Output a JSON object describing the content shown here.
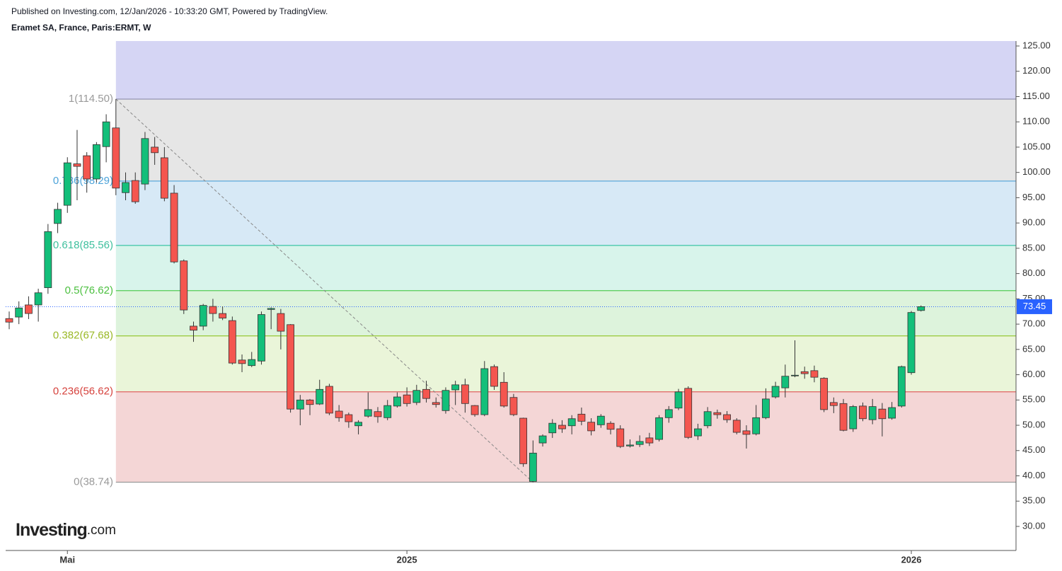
{
  "header": {
    "published": "Published on Investing.com, 12/Jan/2026 - 10:33:20 GMT, Powered by TradingView."
  },
  "logo": {
    "brand": "Investing",
    "suffix": ".com"
  },
  "chart_data": {
    "type": "candlestick",
    "title": "Eramet SA, France, Paris:ERMT, W",
    "categories": [
      null,
      null,
      null,
      null,
      null,
      null,
      "Mai",
      null,
      null,
      null,
      null,
      null,
      null,
      null,
      null,
      null,
      null,
      null,
      null,
      null,
      null,
      null,
      null,
      null,
      null,
      null,
      null,
      null,
      null,
      null,
      null,
      null,
      null,
      null,
      null,
      null,
      null,
      null,
      null,
      null,
      null,
      "2025",
      null,
      null,
      null,
      null,
      null,
      null,
      null,
      null,
      null,
      null,
      null,
      null,
      null,
      null,
      null,
      null,
      null,
      null,
      null,
      null,
      null,
      null,
      null,
      null,
      null,
      null,
      null,
      null,
      null,
      null,
      null,
      null,
      null,
      null,
      null,
      null,
      null,
      null,
      null,
      null,
      null,
      null,
      null,
      null,
      null,
      null,
      null,
      null,
      null,
      null,
      null,
      "2026",
      null
    ],
    "open": [
      71.1,
      71.4,
      73.8,
      73.8,
      77.2,
      89.9,
      93.5,
      101.7,
      103.3,
      98.7,
      105.1,
      108.8,
      96.0,
      98.4,
      97.7,
      105.0,
      102.9,
      95.9,
      82.5,
      69.6,
      69.6,
      73.5,
      72.1,
      70.7,
      62.9,
      61.8,
      62.7,
      72.9,
      72.1,
      69.9,
      53.2,
      55.0,
      54.2,
      57.7,
      52.8,
      52.1,
      49.9,
      51.8,
      52.7,
      51.5,
      53.8,
      56.0,
      54.5,
      57.1,
      54.5,
      52.9,
      57.0,
      58.0,
      53.9,
      52.1,
      61.6,
      58.5,
      55.5,
      51.4,
      38.9,
      46.5,
      48.5,
      50.0,
      49.9,
      52.2,
      50.6,
      50.1,
      50.4,
      49.3,
      45.9,
      46.2,
      47.5,
      47.2,
      51.5,
      53.4,
      57.3,
      47.9,
      49.9,
      52.5,
      52.1,
      51.0,
      48.9,
      48.3,
      51.5,
      55.6,
      57.4,
      59.8,
      60.6,
      60.8,
      59.3,
      54.5,
      54.3,
      49.3,
      53.8,
      51.1,
      53.2,
      51.4,
      53.8,
      60.4,
      72.7
    ],
    "high": [
      72.5,
      74.5,
      75.5,
      77.0,
      89.8,
      94.0,
      103.0,
      108.4,
      104.0,
      106.0,
      111.5,
      114.5,
      100.0,
      100.0,
      108.0,
      107.0,
      105.0,
      97.5,
      82.8,
      70.5,
      74.0,
      75.0,
      73.5,
      71.5,
      64.0,
      64.5,
      72.5,
      73.3,
      73.0,
      70.0,
      56.0,
      55.2,
      59.0,
      58.2,
      54.0,
      52.5,
      51.0,
      56.5,
      53.6,
      55.0,
      56.5,
      57.5,
      58.0,
      58.8,
      55.5,
      57.5,
      58.8,
      59.2,
      54.0,
      62.7,
      62.0,
      60.5,
      56.2,
      51.5,
      47.0,
      48.2,
      51.2,
      51.0,
      52.0,
      53.5,
      51.4,
      52.2,
      50.8,
      50.0,
      47.2,
      48.0,
      48.5,
      52.0,
      53.8,
      57.2,
      57.7,
      50.3,
      53.6,
      53.1,
      52.8,
      51.4,
      50.0,
      54.0,
      57.3,
      58.6,
      62.0,
      66.8,
      61.6,
      61.8,
      59.5,
      55.5,
      55.2,
      54.0,
      54.5,
      55.2,
      54.4,
      54.6,
      61.8,
      72.6,
      73.7
    ],
    "low": [
      69.0,
      70.0,
      71.0,
      70.5,
      76.0,
      88.0,
      92.0,
      94.5,
      96.0,
      98.0,
      102.0,
      95.5,
      94.5,
      93.8,
      96.5,
      101.5,
      94.3,
      82.0,
      72.0,
      66.5,
      68.8,
      70.5,
      70.8,
      62.0,
      60.5,
      61.5,
      62.0,
      69.0,
      65.0,
      52.5,
      50.0,
      52.0,
      54.0,
      52.0,
      50.7,
      49.5,
      48.2,
      51.5,
      50.5,
      51.0,
      53.5,
      53.7,
      54.0,
      54.5,
      53.5,
      52.3,
      54.0,
      52.5,
      51.7,
      51.8,
      57.0,
      53.5,
      51.8,
      41.8,
      38.74,
      45.8,
      47.5,
      48.5,
      48.2,
      50.0,
      48.0,
      49.5,
      48.2,
      45.5,
      45.6,
      45.7,
      45.9,
      46.8,
      50.5,
      53.0,
      47.3,
      47.1,
      49.4,
      51.3,
      50.5,
      48.2,
      45.4,
      48.0,
      51.2,
      55.3,
      55.5,
      59.5,
      59.2,
      58.5,
      52.6,
      52.4,
      48.8,
      48.7,
      50.8,
      50.2,
      47.8,
      51.1,
      53.5,
      60.0,
      72.5
    ],
    "close": [
      70.4,
      73.2,
      72.1,
      76.2,
      88.3,
      92.7,
      101.9,
      101.2,
      98.7,
      105.5,
      110.0,
      96.9,
      98.0,
      94.2,
      106.7,
      103.9,
      94.9,
      82.3,
      72.8,
      68.8,
      73.7,
      72.1,
      71.2,
      62.3,
      62.2,
      63.0,
      71.9,
      73.1,
      68.6,
      53.2,
      55.0,
      54.1,
      57.1,
      52.4,
      51.5,
      50.7,
      50.6,
      53.1,
      51.7,
      53.9,
      55.6,
      54.3,
      56.9,
      55.3,
      54.1,
      56.9,
      58.0,
      54.3,
      52.1,
      61.2,
      57.7,
      53.8,
      52.1,
      42.4,
      44.5,
      47.9,
      50.4,
      49.3,
      51.3,
      50.8,
      48.9,
      51.8,
      49.2,
      45.8,
      46.1,
      46.8,
      46.5,
      51.5,
      53.1,
      56.6,
      47.6,
      49.3,
      52.7,
      52.1,
      51.1,
      48.6,
      48.2,
      51.5,
      55.2,
      57.7,
      59.7,
      59.9,
      60.2,
      59.5,
      53.1,
      53.9,
      49.0,
      53.7,
      51.3,
      53.7,
      51.3,
      53.5,
      61.6,
      72.3,
      73.45
    ],
    "up_color": "#13bf7a",
    "down_color": "#f4564f",
    "last_price_color": "#2962ff",
    "ylim": [
      25.24,
      125.98
    ],
    "yticks": [
      {
        "value": 125,
        "label": "125.00"
      },
      {
        "value": 120,
        "label": "120.00"
      },
      {
        "value": 115,
        "label": "115.00"
      },
      {
        "value": 110,
        "label": "110.00"
      },
      {
        "value": 105,
        "label": "105.00"
      },
      {
        "value": 100,
        "label": "100.00"
      },
      {
        "value": 95,
        "label": "95.00"
      },
      {
        "value": 90,
        "label": "90.00"
      },
      {
        "value": 85,
        "label": "85.00"
      },
      {
        "value": 80,
        "label": "80.00"
      },
      {
        "value": 75,
        "label": "75.00"
      },
      {
        "value": 70,
        "label": "70.00"
      },
      {
        "value": 65,
        "label": "65.00"
      },
      {
        "value": 60,
        "label": "60.00"
      },
      {
        "value": 55,
        "label": "55.00"
      },
      {
        "value": 50,
        "label": "50.00"
      },
      {
        "value": 45,
        "label": "45.00"
      },
      {
        "value": 40,
        "label": "40.00"
      },
      {
        "value": 35,
        "label": "35.00"
      },
      {
        "value": 30,
        "label": "30.00"
      }
    ],
    "fib_levels": [
      {
        "value": 114.5,
        "label": "1(114.50)",
        "color": "#9b9bb8",
        "text_color": "#9a9a9a",
        "fill": "#d5d5f4"
      },
      {
        "value": 98.29,
        "label": "0.786(98.29)",
        "color": "#5aa8dc",
        "text_color": "#4da3d9",
        "fill": "#e6e6e6"
      },
      {
        "value": 85.56,
        "label": "0.618(85.56)",
        "color": "#3cc6a6",
        "text_color": "#3fc09e",
        "fill": "#d7e9f6"
      },
      {
        "value": 76.62,
        "label": "0.5(76.62)",
        "color": "#55cc55",
        "text_color": "#4cc040",
        "fill": "#d8f4eb"
      },
      {
        "value": 67.68,
        "label": "0.382(67.68)",
        "color": "#9ccc44",
        "text_color": "#9ab826",
        "fill": "#ddf3dc"
      },
      {
        "value": 56.62,
        "label": "0.236(56.62)",
        "color": "#e06060",
        "text_color": "#d6423d",
        "fill": "#eaf5d9"
      },
      {
        "value": 38.74,
        "label": "0(38.74)",
        "color": "#9a9a9a",
        "text_color": "#9a9a9a",
        "fill": "#f4d6d6"
      }
    ]
  }
}
